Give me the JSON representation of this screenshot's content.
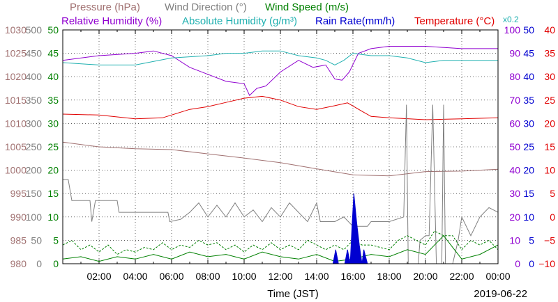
{
  "chart_data": {
    "type": "line",
    "title_legend": [
      {
        "label": "Pressure (hPa)",
        "color": "#a07070"
      },
      {
        "label": "Wind Direction (°)",
        "color": "#808080"
      },
      {
        "label": "Wind Speed (m/s)",
        "color": "#008000"
      },
      {
        "label": "Relative Humidity (%)",
        "color": "#9000d0"
      },
      {
        "label": "Absolute Humidity (g/m³)",
        "color": "#20b0b0"
      },
      {
        "label": "Rain Rate(mm/h)",
        "color": "#0000d0"
      },
      {
        "label": "Temperature (°C)",
        "color": "#e00000"
      }
    ],
    "abs_humidity_scale_note": "x0.2",
    "xlabel": "Time (JST)",
    "date_label": "2019-06-22",
    "x_range_hours": [
      0,
      24
    ],
    "x_ticks": [
      "02:00",
      "04:00",
      "06:00",
      "08:00",
      "10:00",
      "12:00",
      "14:00",
      "16:00",
      "18:00",
      "20:00",
      "22:00",
      "00:00"
    ],
    "axes": {
      "pressure": {
        "color": "#a07070",
        "ticks": [
          "980",
          "985",
          "990",
          "995",
          "1000",
          "1005",
          "1010",
          "1015",
          "1020",
          "1025",
          "1030"
        ],
        "range": [
          980,
          1030
        ]
      },
      "wind_direction": {
        "color": "#808080",
        "ticks": [
          "0",
          "50",
          "100",
          "150",
          "200",
          "250",
          "300",
          "350",
          "400",
          "450",
          "500"
        ],
        "range": [
          0,
          500
        ]
      },
      "wind_speed": {
        "color": "#008000",
        "ticks": [
          "0",
          "5",
          "10",
          "15",
          "20",
          "25",
          "30",
          "35",
          "40",
          "45",
          "50"
        ],
        "range": [
          0,
          50
        ]
      },
      "humidity": {
        "color": "#9000d0",
        "ticks": [
          "0",
          "10",
          "20",
          "30",
          "40",
          "50",
          "60",
          "70",
          "80",
          "90",
          "100"
        ],
        "range": [
          0,
          100
        ]
      },
      "rain_rate": {
        "color": "#0000d0",
        "ticks": [
          "0",
          "5",
          "10",
          "15",
          "20",
          "25",
          "30",
          "35",
          "40",
          "45",
          "50"
        ],
        "range": [
          0,
          50
        ]
      },
      "temperature": {
        "color": "#e00000",
        "ticks": [
          "−10",
          "−5",
          "0",
          "5",
          "10",
          "15",
          "20",
          "25",
          "30",
          "35",
          "40"
        ],
        "range": [
          -10,
          40
        ]
      }
    },
    "series": [
      {
        "key": "pressure",
        "axis": "pressure",
        "color": "#a07070",
        "points": [
          [
            0,
            1006
          ],
          [
            2,
            1005
          ],
          [
            4,
            1004.6
          ],
          [
            6,
            1004.4
          ],
          [
            8,
            1003.5
          ],
          [
            10,
            1002.6
          ],
          [
            12,
            1001.6
          ],
          [
            14,
            1000.3
          ],
          [
            16,
            999
          ],
          [
            18,
            998.8
          ],
          [
            20,
            999.7
          ],
          [
            22,
            999.8
          ],
          [
            24,
            1000.2
          ]
        ]
      },
      {
        "key": "temperature",
        "axis": "temperature",
        "color": "#e00000",
        "points": [
          [
            0,
            22
          ],
          [
            2,
            21.8
          ],
          [
            4,
            21
          ],
          [
            5.5,
            21.2
          ],
          [
            7,
            23
          ],
          [
            8,
            23.6
          ],
          [
            9,
            24.5
          ],
          [
            10,
            25.4
          ],
          [
            11,
            25.8
          ],
          [
            12,
            25
          ],
          [
            13,
            23.6
          ],
          [
            14,
            23
          ],
          [
            15,
            23.8
          ],
          [
            15.7,
            24.4
          ],
          [
            16.5,
            22.6
          ],
          [
            17,
            21.5
          ],
          [
            18,
            21.2
          ],
          [
            20,
            20.8
          ],
          [
            22,
            21
          ],
          [
            24,
            21.2
          ]
        ]
      },
      {
        "key": "relative_humidity",
        "axis": "humidity",
        "color": "#9000d0",
        "points": [
          [
            0,
            87
          ],
          [
            2,
            89
          ],
          [
            4,
            90
          ],
          [
            5,
            91
          ],
          [
            6,
            89
          ],
          [
            7,
            84
          ],
          [
            8,
            81
          ],
          [
            9,
            78
          ],
          [
            10,
            77
          ],
          [
            10.3,
            72
          ],
          [
            10.7,
            75
          ],
          [
            11.2,
            76
          ],
          [
            12,
            82
          ],
          [
            13,
            87
          ],
          [
            13.8,
            84
          ],
          [
            14.5,
            85
          ],
          [
            15,
            79
          ],
          [
            15.4,
            78.5
          ],
          [
            15.8,
            82
          ],
          [
            16.3,
            90
          ],
          [
            17,
            92
          ],
          [
            18,
            93
          ],
          [
            20,
            93
          ],
          [
            22,
            92
          ],
          [
            24,
            92
          ]
        ]
      },
      {
        "key": "absolute_humidity",
        "axis": "humidity",
        "color": "#20b0b0",
        "points": [
          [
            0,
            86
          ],
          [
            2,
            85
          ],
          [
            4,
            85
          ],
          [
            6,
            88
          ],
          [
            8,
            89
          ],
          [
            9,
            90
          ],
          [
            10,
            90
          ],
          [
            11,
            91
          ],
          [
            12,
            91
          ],
          [
            13,
            89
          ],
          [
            14,
            88
          ],
          [
            14.5,
            87
          ],
          [
            15,
            85
          ],
          [
            15.5,
            87
          ],
          [
            16,
            90
          ],
          [
            17,
            89
          ],
          [
            18,
            89
          ],
          [
            19,
            88
          ],
          [
            20,
            86
          ],
          [
            21,
            87
          ],
          [
            22,
            87
          ],
          [
            24,
            87
          ]
        ]
      },
      {
        "key": "wind_direction",
        "axis": "wind_direction",
        "color": "#808080",
        "points": [
          [
            0,
            180
          ],
          [
            0.3,
            180
          ],
          [
            0.5,
            135
          ],
          [
            1.5,
            135
          ],
          [
            1.6,
            90
          ],
          [
            1.8,
            135
          ],
          [
            3,
            135
          ],
          [
            3.1,
            110
          ],
          [
            5.8,
            110
          ],
          [
            5.9,
            90
          ],
          [
            6.5,
            95
          ],
          [
            7,
            110
          ],
          [
            7.5,
            130
          ],
          [
            8,
            100
          ],
          [
            8.5,
            125
          ],
          [
            9,
            100
          ],
          [
            9.5,
            130
          ],
          [
            10,
            100
          ],
          [
            10.5,
            115
          ],
          [
            11,
            90
          ],
          [
            11.5,
            120
          ],
          [
            12,
            100
          ],
          [
            12.5,
            130
          ],
          [
            13,
            110
          ],
          [
            13.5,
            90
          ],
          [
            14,
            130
          ],
          [
            14.2,
            90
          ],
          [
            15,
            90
          ],
          [
            15.5,
            100
          ],
          [
            16,
            80
          ],
          [
            16.8,
            80
          ],
          [
            17,
            90
          ],
          [
            18,
            90
          ],
          [
            18.8,
            100
          ],
          [
            18.95,
            340
          ],
          [
            19.05,
            0
          ],
          [
            19.6,
            0
          ],
          [
            19.7,
            50
          ],
          [
            20,
            60
          ],
          [
            20.2,
            60
          ],
          [
            20.4,
            340
          ],
          [
            20.6,
            0
          ],
          [
            20.9,
            0
          ],
          [
            21,
            340
          ],
          [
            21.1,
            0
          ],
          [
            21.5,
            0
          ],
          [
            21.8,
            50
          ],
          [
            22,
            100
          ],
          [
            22.5,
            60
          ],
          [
            23,
            100
          ],
          [
            23.5,
            120
          ],
          [
            24,
            110
          ]
        ]
      },
      {
        "key": "wind_speed",
        "axis": "wind_speed",
        "color": "#008000",
        "points": [
          [
            0,
            1
          ],
          [
            1,
            1.5
          ],
          [
            2,
            0.5
          ],
          [
            3,
            1.5
          ],
          [
            4,
            1
          ],
          [
            5,
            2
          ],
          [
            6,
            1
          ],
          [
            7,
            2.5
          ],
          [
            8,
            1.5
          ],
          [
            9,
            2
          ],
          [
            10,
            1
          ],
          [
            11,
            2.5
          ],
          [
            12,
            1.5
          ],
          [
            13,
            1
          ],
          [
            14,
            2
          ],
          [
            15,
            0.5
          ],
          [
            16,
            1
          ],
          [
            17,
            2
          ],
          [
            18,
            1.5
          ],
          [
            19,
            3
          ],
          [
            20,
            2
          ],
          [
            21,
            6
          ],
          [
            22,
            1
          ],
          [
            23,
            2
          ],
          [
            24,
            4
          ]
        ]
      },
      {
        "key": "wind_gust",
        "axis": "wind_speed",
        "color": "#008000",
        "dashed": true,
        "points": [
          [
            0,
            4
          ],
          [
            0.5,
            5
          ],
          [
            1,
            3
          ],
          [
            1.5,
            4
          ],
          [
            2,
            2.5
          ],
          [
            2.5,
            4
          ],
          [
            3,
            2
          ],
          [
            3.5,
            3
          ],
          [
            4,
            2.5
          ],
          [
            4.5,
            3.5
          ],
          [
            5,
            3
          ],
          [
            5.5,
            4.5
          ],
          [
            6,
            3
          ],
          [
            6.5,
            4
          ],
          [
            7,
            3.5
          ],
          [
            7.5,
            5
          ],
          [
            8,
            4
          ],
          [
            8.5,
            4.5
          ],
          [
            9,
            3
          ],
          [
            9.5,
            4
          ],
          [
            10,
            2.5
          ],
          [
            10.5,
            4
          ],
          [
            11,
            3
          ],
          [
            11.5,
            4.5
          ],
          [
            12,
            3
          ],
          [
            12.5,
            4
          ],
          [
            13,
            3
          ],
          [
            13.5,
            5
          ],
          [
            14,
            4
          ],
          [
            14.5,
            3
          ],
          [
            15,
            4
          ],
          [
            15.5,
            3
          ],
          [
            16,
            5
          ],
          [
            16.5,
            4
          ],
          [
            17,
            4
          ],
          [
            17.5,
            3.5
          ],
          [
            18,
            3
          ],
          [
            18.5,
            5
          ],
          [
            19,
            6
          ],
          [
            19.5,
            5
          ],
          [
            20,
            4
          ],
          [
            20.5,
            7
          ],
          [
            21,
            6
          ],
          [
            21.5,
            6
          ],
          [
            22,
            3
          ],
          [
            22.5,
            5
          ],
          [
            23,
            4
          ],
          [
            23.5,
            5
          ],
          [
            24,
            3
          ]
        ]
      },
      {
        "key": "rain_rate",
        "axis": "rain_rate",
        "color": "#0000d0",
        "fill": true,
        "points": [
          [
            14.9,
            0
          ],
          [
            15.05,
            3
          ],
          [
            15.2,
            0
          ],
          [
            15.55,
            0
          ],
          [
            15.7,
            3
          ],
          [
            15.85,
            0
          ],
          [
            15.95,
            8
          ],
          [
            16.05,
            15
          ],
          [
            16.2,
            9
          ],
          [
            16.35,
            4
          ],
          [
            16.5,
            0
          ],
          [
            16.6,
            3
          ],
          [
            16.8,
            0
          ],
          [
            24,
            0
          ]
        ]
      }
    ]
  }
}
